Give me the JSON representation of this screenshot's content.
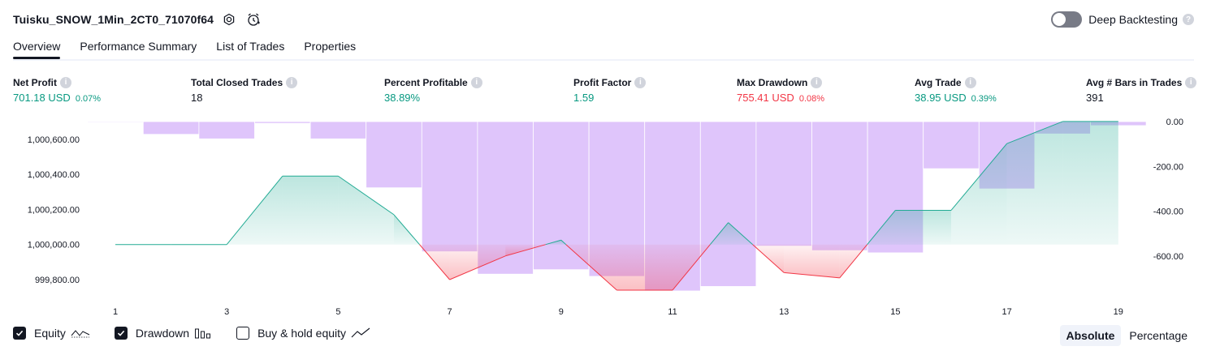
{
  "header": {
    "strategy_name": "Tuisku_SNOW_1Min_2CT0_71070f64",
    "deep_backtesting_label": "Deep Backtesting",
    "deep_backtesting_enabled": false
  },
  "tabs": [
    {
      "label": "Overview",
      "active": true
    },
    {
      "label": "Performance Summary",
      "active": false
    },
    {
      "label": "List of Trades",
      "active": false
    },
    {
      "label": "Properties",
      "active": false
    }
  ],
  "metrics": [
    {
      "label": "Net Profit",
      "value": "701.18 USD",
      "pct": "0.07%",
      "tone": "pos"
    },
    {
      "label": "Total Closed Trades",
      "value": "18",
      "pct": "",
      "tone": "neu"
    },
    {
      "label": "Percent Profitable",
      "value": "38.89%",
      "pct": "",
      "tone": "pos"
    },
    {
      "label": "Profit Factor",
      "value": "1.59",
      "pct": "",
      "tone": "pos"
    },
    {
      "label": "Max Drawdown",
      "value": "755.41 USD",
      "pct": "0.08%",
      "tone": "neg"
    },
    {
      "label": "Avg Trade",
      "value": "38.95 USD",
      "pct": "0.39%",
      "tone": "pos"
    },
    {
      "label": "Avg # Bars in Trades",
      "value": "391",
      "pct": "",
      "tone": "neu"
    }
  ],
  "chart_data": {
    "type": "area",
    "x": [
      1,
      2,
      3,
      4,
      5,
      6,
      7,
      8,
      9,
      10,
      11,
      12,
      13,
      14,
      15,
      16,
      17,
      18,
      19
    ],
    "x_ticks": [
      1,
      3,
      5,
      7,
      9,
      11,
      13,
      15,
      17,
      19
    ],
    "baseline": 1000000,
    "series": [
      {
        "name": "Equity",
        "values": [
          1000000,
          1000000,
          1000000,
          1000390,
          1000390,
          1000170,
          999800,
          999935,
          1000025,
          999740,
          999740,
          1000125,
          999840,
          999810,
          1000195,
          1000195,
          1000575,
          1000701,
          1000701
        ]
      },
      {
        "name": "Drawdown",
        "values": [
          -0.8,
          -57,
          -77,
          -8,
          -77,
          -295,
          -580,
          -680,
          -660,
          -690,
          -755,
          -735,
          -555,
          -575,
          -585,
          -210,
          -300,
          -55,
          -18
        ]
      }
    ],
    "y_left": {
      "ticks": [
        "1,000,600.00",
        "1,000,400.00",
        "1,000,200.00",
        "1,000,000.00",
        "999,800.00"
      ],
      "tick_values": [
        1000600,
        1000400,
        1000200,
        1000000,
        999800
      ],
      "range": [
        999740,
        1000701
      ]
    },
    "y_right": {
      "ticks": [
        "0.00",
        "-200.00",
        "-400.00",
        "-600.00"
      ],
      "tick_values": [
        0,
        -200,
        -400,
        -600
      ],
      "range": [
        -755,
        0
      ]
    },
    "colors": {
      "equity_up": "#22ab94",
      "equity_down": "#f23645",
      "drawdown": "#c495f7",
      "grid": "#e0e3eb"
    }
  },
  "legend": {
    "items": [
      {
        "label": "Equity",
        "checked": true,
        "icon": "equity-line-icon"
      },
      {
        "label": "Drawdown",
        "checked": true,
        "icon": "drawdown-bars-icon"
      },
      {
        "label": "Buy & hold equity",
        "checked": false,
        "icon": "trend-line-icon"
      }
    ],
    "modes": [
      {
        "label": "Absolute",
        "active": true
      },
      {
        "label": "Percentage",
        "active": false
      }
    ]
  }
}
